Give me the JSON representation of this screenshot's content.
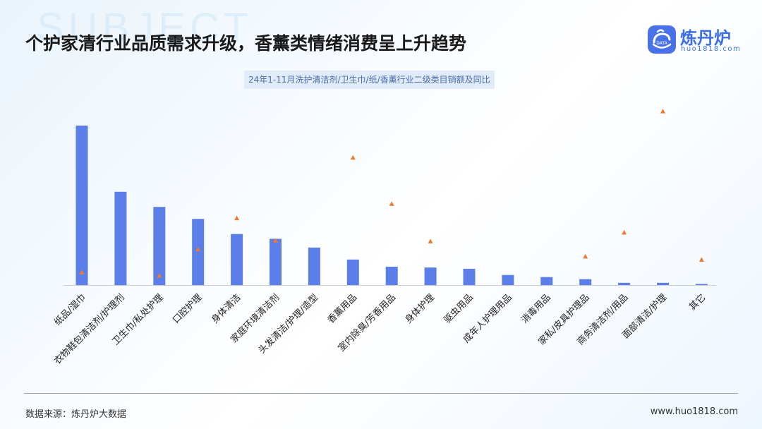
{
  "header": {
    "watermark_word": "SUBJECT",
    "title": "个护家清行业品质需求升级，香薰类情绪消费呈上升趋势"
  },
  "logo": {
    "name": "炼丹炉",
    "url": "huo1818.com",
    "mark_text": "DATA"
  },
  "chart_data": {
    "type": "bar",
    "title": "24年1-11月洗护清洁剂/卫生巾/纸/香薰行业二级类目销额及同比",
    "categories": [
      "纸品/湿巾",
      "衣物鞋包清洁剂/护理剂",
      "卫生巾/私处护理",
      "口腔护理",
      "身体清洁",
      "家庭环境清洁剂",
      "头发清洁/护理/造型",
      "香薰用品",
      "室内除臭/芳香用品",
      "身体护理",
      "驱虫用品",
      "成年人护理用品",
      "消毒用品",
      "家私/皮具护理品",
      "商务清洁剂/用品",
      "面部清洁/护理",
      "其它"
    ],
    "series": [
      {
        "kind": "bar",
        "values": [
          100,
          58.5,
          49,
          41.5,
          32,
          29,
          23.5,
          16,
          11.5,
          11,
          10.2,
          6.3,
          5,
          3.7,
          1.4,
          1.4,
          0.7
        ]
      },
      {
        "kind": "marker",
        "values": [
          8,
          null,
          6,
          22.5,
          42,
          28,
          null,
          80,
          51,
          27.5,
          null,
          null,
          null,
          18,
          33,
          109,
          16
        ]
      }
    ],
    "colors": {
      "bar": "#5b7ee8",
      "marker": "#f07a2c"
    },
    "grid": false,
    "legend": false
  },
  "footer": {
    "source": "数据来源：炼丹炉大数据",
    "website": "www.huo1818.com"
  }
}
